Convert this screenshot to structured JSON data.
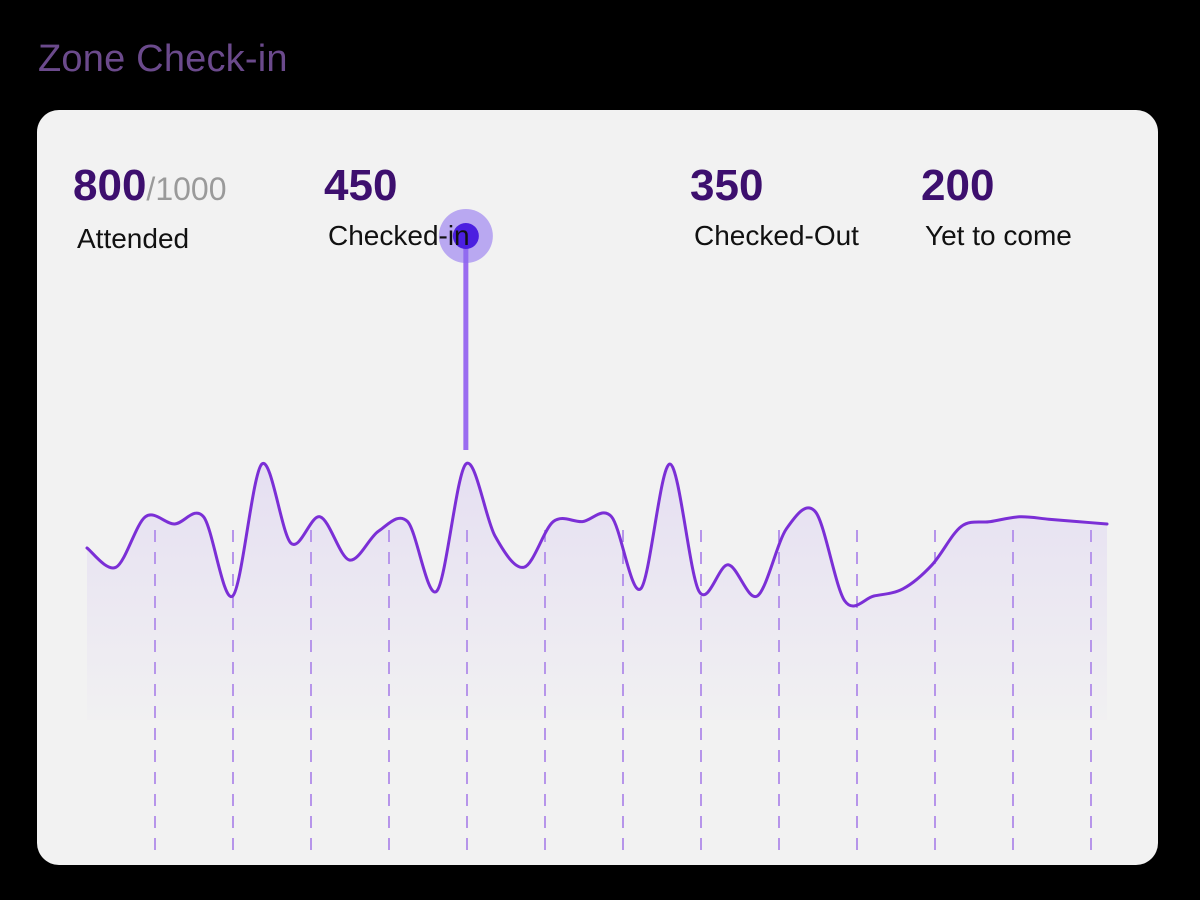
{
  "page": {
    "title": "Zone Check-in"
  },
  "stats": {
    "attended": {
      "value": "800",
      "total": "/1000",
      "label": "Attended"
    },
    "checked_in": {
      "value": "450",
      "label": "Checked-in"
    },
    "checked_out": {
      "value": "350",
      "label": "Checked-Out"
    },
    "yet_to_come": {
      "value": "200",
      "label": "Yet to come"
    }
  },
  "colors": {
    "accent": "#7b2fd6",
    "value_text": "#3d0f6e",
    "title": "#6b4a8c",
    "marker": "#4b1fe0",
    "marker_halo": "#8a6cf0",
    "card_bg": "#f2f2f2"
  },
  "chart_data": {
    "type": "area",
    "x": [
      0,
      1,
      2,
      3,
      4,
      5,
      6,
      7,
      8,
      9,
      10,
      11,
      12,
      13,
      14,
      15,
      16,
      17,
      18,
      19,
      20,
      21,
      22,
      23,
      24,
      25,
      26,
      27,
      28,
      29,
      30,
      31,
      32,
      33,
      34,
      35
    ],
    "values": [
      50,
      42,
      63,
      60,
      63,
      30,
      85,
      52,
      63,
      45,
      57,
      61,
      32,
      85,
      55,
      42,
      61,
      61,
      63,
      33,
      85,
      32,
      43,
      30,
      58,
      65,
      28,
      30,
      33,
      43,
      59,
      61,
      63,
      62,
      61,
      60
    ],
    "ylim": [
      0,
      100
    ],
    "highlight_index": 13,
    "grid": "vertical-dashed",
    "legend": "none"
  }
}
